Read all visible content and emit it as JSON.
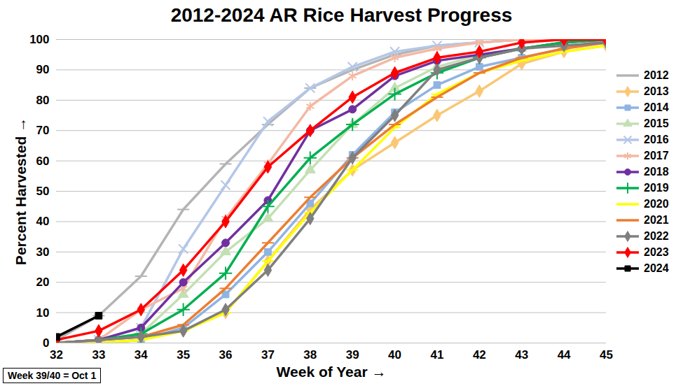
{
  "chart_data": {
    "type": "line",
    "title": "2012-2024 AR Rice Harvest Progress",
    "x_label": "Week of Year",
    "y_label": "Percent Harvested",
    "annotation": "Week 39/40 = Oct 1",
    "x": [
      32,
      33,
      34,
      35,
      36,
      37,
      38,
      39,
      40,
      41,
      42,
      43,
      44,
      45
    ],
    "xlim": [
      32,
      45
    ],
    "xticks": [
      32,
      33,
      34,
      35,
      36,
      37,
      38,
      39,
      40,
      41,
      42,
      43,
      44,
      45
    ],
    "ylim": [
      0,
      100
    ],
    "yticks": [
      0,
      10,
      20,
      30,
      40,
      50,
      60,
      70,
      80,
      90,
      100
    ],
    "grid": true,
    "legend": "right",
    "series": [
      {
        "name": "2012",
        "color": "#b4b4b4",
        "marker": "dash",
        "values": [
          1,
          9,
          22,
          44,
          59,
          72,
          84,
          90,
          95,
          98,
          99,
          100,
          100,
          100
        ]
      },
      {
        "name": "2013",
        "color": "#fac775",
        "marker": "diamond",
        "values": [
          0,
          0,
          1,
          4,
          10,
          27,
          44,
          57,
          66,
          75,
          83,
          92,
          96,
          98
        ]
      },
      {
        "name": "2014",
        "color": "#8eb4e3",
        "marker": "square",
        "values": [
          0,
          0,
          1,
          5,
          16,
          30,
          46,
          62,
          76,
          85,
          91,
          94,
          97,
          100
        ]
      },
      {
        "name": "2015",
        "color": "#c3e0b4",
        "marker": "triangle",
        "values": [
          0,
          1,
          3,
          16,
          30,
          41,
          57,
          72,
          84,
          91,
          95,
          97,
          99,
          100
        ]
      },
      {
        "name": "2016",
        "color": "#b4c7e7",
        "marker": "times",
        "values": [
          0,
          1,
          5,
          31,
          52,
          73,
          84,
          91,
          96,
          98,
          99,
          100,
          100,
          100
        ]
      },
      {
        "name": "2017",
        "color": "#f4b9a4",
        "marker": "asterisk",
        "values": [
          0,
          1,
          11,
          18,
          41,
          59,
          78,
          88,
          94,
          97,
          99,
          100,
          100,
          100
        ]
      },
      {
        "name": "2018",
        "color": "#7030a0",
        "marker": "circle",
        "values": [
          0,
          1,
          5,
          20,
          33,
          47,
          70,
          77,
          88,
          93,
          95,
          97,
          99,
          100
        ]
      },
      {
        "name": "2019",
        "color": "#00b050",
        "marker": "plus",
        "values": [
          0,
          1,
          3,
          11,
          23,
          45,
          61,
          72,
          82,
          89,
          94,
          97,
          99,
          100
        ]
      },
      {
        "name": "2020",
        "color": "#ffff00",
        "marker": "dash",
        "values": [
          0,
          0,
          1,
          4,
          10,
          27,
          43,
          57,
          71,
          82,
          89,
          93,
          96,
          98
        ]
      },
      {
        "name": "2021",
        "color": "#ed7d31",
        "marker": "dash",
        "values": [
          0,
          1,
          2,
          6,
          18,
          33,
          48,
          61,
          72,
          81,
          89,
          94,
          97,
          99
        ]
      },
      {
        "name": "2022",
        "color": "#7f7f7f",
        "marker": "diamond",
        "values": [
          0,
          1,
          2,
          4,
          11,
          24,
          41,
          61,
          75,
          90,
          94,
          97,
          98,
          99
        ]
      },
      {
        "name": "2023",
        "color": "#ff0000",
        "marker": "diamond",
        "values": [
          1,
          4,
          11,
          24,
          40,
          58,
          70,
          81,
          89,
          94,
          96,
          99,
          100,
          100
        ]
      },
      {
        "name": "2024",
        "color": "#000000",
        "marker": "square",
        "values": [
          2,
          9,
          null,
          null,
          null,
          null,
          null,
          null,
          null,
          null,
          null,
          null,
          null,
          null
        ]
      }
    ]
  }
}
